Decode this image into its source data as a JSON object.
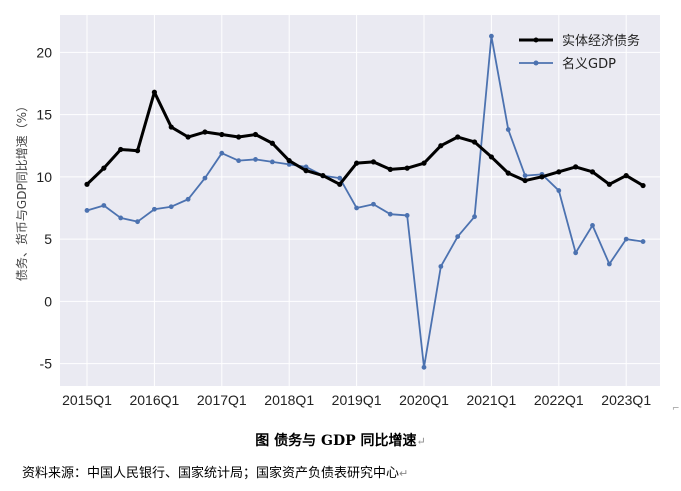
{
  "chart_data": {
    "type": "line",
    "categories": [
      "2015Q1",
      "2015Q2",
      "2015Q3",
      "2015Q4",
      "2016Q1",
      "2016Q2",
      "2016Q3",
      "2016Q4",
      "2017Q1",
      "2017Q2",
      "2017Q3",
      "2017Q4",
      "2018Q1",
      "2018Q2",
      "2018Q3",
      "2018Q4",
      "2019Q1",
      "2019Q2",
      "2019Q3",
      "2019Q4",
      "2020Q1",
      "2020Q2",
      "2020Q3",
      "2020Q4",
      "2021Q1",
      "2021Q2",
      "2021Q3",
      "2021Q4",
      "2022Q1",
      "2022Q2",
      "2022Q3",
      "2022Q4",
      "2023Q1",
      "2023Q2"
    ],
    "x_tick_labels": [
      "2015Q1",
      "2016Q1",
      "2017Q1",
      "2018Q1",
      "2019Q1",
      "2020Q1",
      "2021Q1",
      "2022Q1",
      "2023Q1"
    ],
    "y_tick_labels": [
      "-5",
      "0",
      "5",
      "10",
      "15",
      "20"
    ],
    "ylim": [
      -6.8,
      23.0
    ],
    "ylabel": "债务、货币与GDP同比增速（%）",
    "grid": true,
    "legend_position": "top-right",
    "series": [
      {
        "name": "实体经济债务",
        "color": "#000000",
        "values": [
          9.4,
          10.7,
          12.2,
          12.1,
          16.8,
          14.0,
          13.2,
          13.6,
          13.4,
          13.2,
          13.4,
          12.7,
          11.3,
          10.5,
          10.1,
          9.4,
          11.1,
          11.2,
          10.6,
          10.7,
          11.1,
          12.5,
          13.2,
          12.8,
          11.6,
          10.3,
          9.7,
          10.0,
          10.4,
          10.8,
          10.4,
          9.4,
          10.1,
          9.3
        ]
      },
      {
        "name": "名义GDP",
        "color": "#4c72b0",
        "values": [
          7.3,
          7.7,
          6.7,
          6.4,
          7.4,
          7.6,
          8.2,
          9.9,
          11.9,
          11.3,
          11.4,
          11.2,
          11.0,
          10.8,
          10.1,
          9.9,
          7.5,
          7.8,
          7.0,
          6.9,
          -5.3,
          2.8,
          5.2,
          6.8,
          21.3,
          13.8,
          10.1,
          10.2,
          8.9,
          3.9,
          6.1,
          3.0,
          5.0,
          4.8
        ]
      }
    ]
  },
  "caption": "图  债务与 GDP 同比增速",
  "source": "资料来源：中国人民银行、国家统计局；国家资产负债表研究中心",
  "return_mark": "↵",
  "corner_mark": "⌐"
}
